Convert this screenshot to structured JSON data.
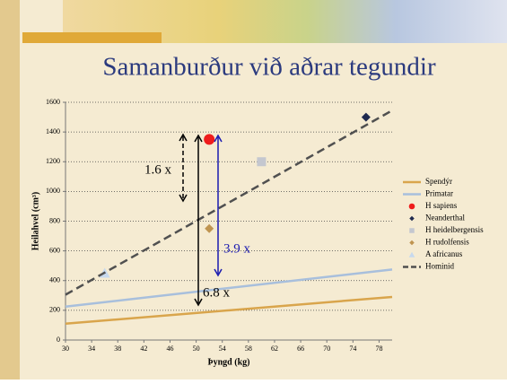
{
  "chart_data": {
    "type": "line",
    "title": "Samanburður við aðrar tegundir",
    "xlabel": "Þyngd (kg)",
    "ylabel": "Heilahvel (cm³)",
    "xlim": [
      30,
      80
    ],
    "xticks": [
      30,
      34,
      38,
      42,
      46,
      50,
      54,
      58,
      62,
      66,
      70,
      74,
      78
    ],
    "ylim": [
      0,
      1600
    ],
    "yticks": [
      0,
      200,
      400,
      600,
      800,
      1000,
      1200,
      1400,
      1600
    ],
    "grid": true,
    "legend": "right",
    "series": [
      {
        "name": "Spendýr",
        "color": "#d9a54c",
        "marker": "line",
        "x": [
          30,
          80
        ],
        "values": [
          110,
          290
        ]
      },
      {
        "name": "Primatar",
        "color": "#a8bfdc",
        "marker": "line",
        "x": [
          30,
          80
        ],
        "values": [
          225,
          475
        ]
      },
      {
        "name": "H sapiens",
        "color": "#ee1c1c",
        "marker": "circle",
        "x": [
          52
        ],
        "values": [
          1350
        ]
      },
      {
        "name": "Neanderthal",
        "color": "#1f2a4f",
        "marker": "diamond",
        "x": [
          76
        ],
        "values": [
          1500
        ]
      },
      {
        "name": "H heidelbergensis",
        "color": "#c4c7cf",
        "marker": "square",
        "x": [
          60
        ],
        "values": [
          1200
        ]
      },
      {
        "name": "H rudolfensis",
        "color": "#bf9450",
        "marker": "diamond",
        "x": [
          52
        ],
        "values": [
          750
        ]
      },
      {
        "name": "A africanus",
        "color": "#c7d9ee",
        "marker": "triangle",
        "x": [
          36
        ],
        "values": [
          450
        ]
      },
      {
        "name": "Hominid",
        "color": "#505050",
        "marker": "dashed",
        "x": [
          30,
          80
        ],
        "values": [
          305,
          1545
        ]
      }
    ],
    "annotations": [
      "1.6 x",
      "3.9 x",
      "6.8 x"
    ]
  }
}
